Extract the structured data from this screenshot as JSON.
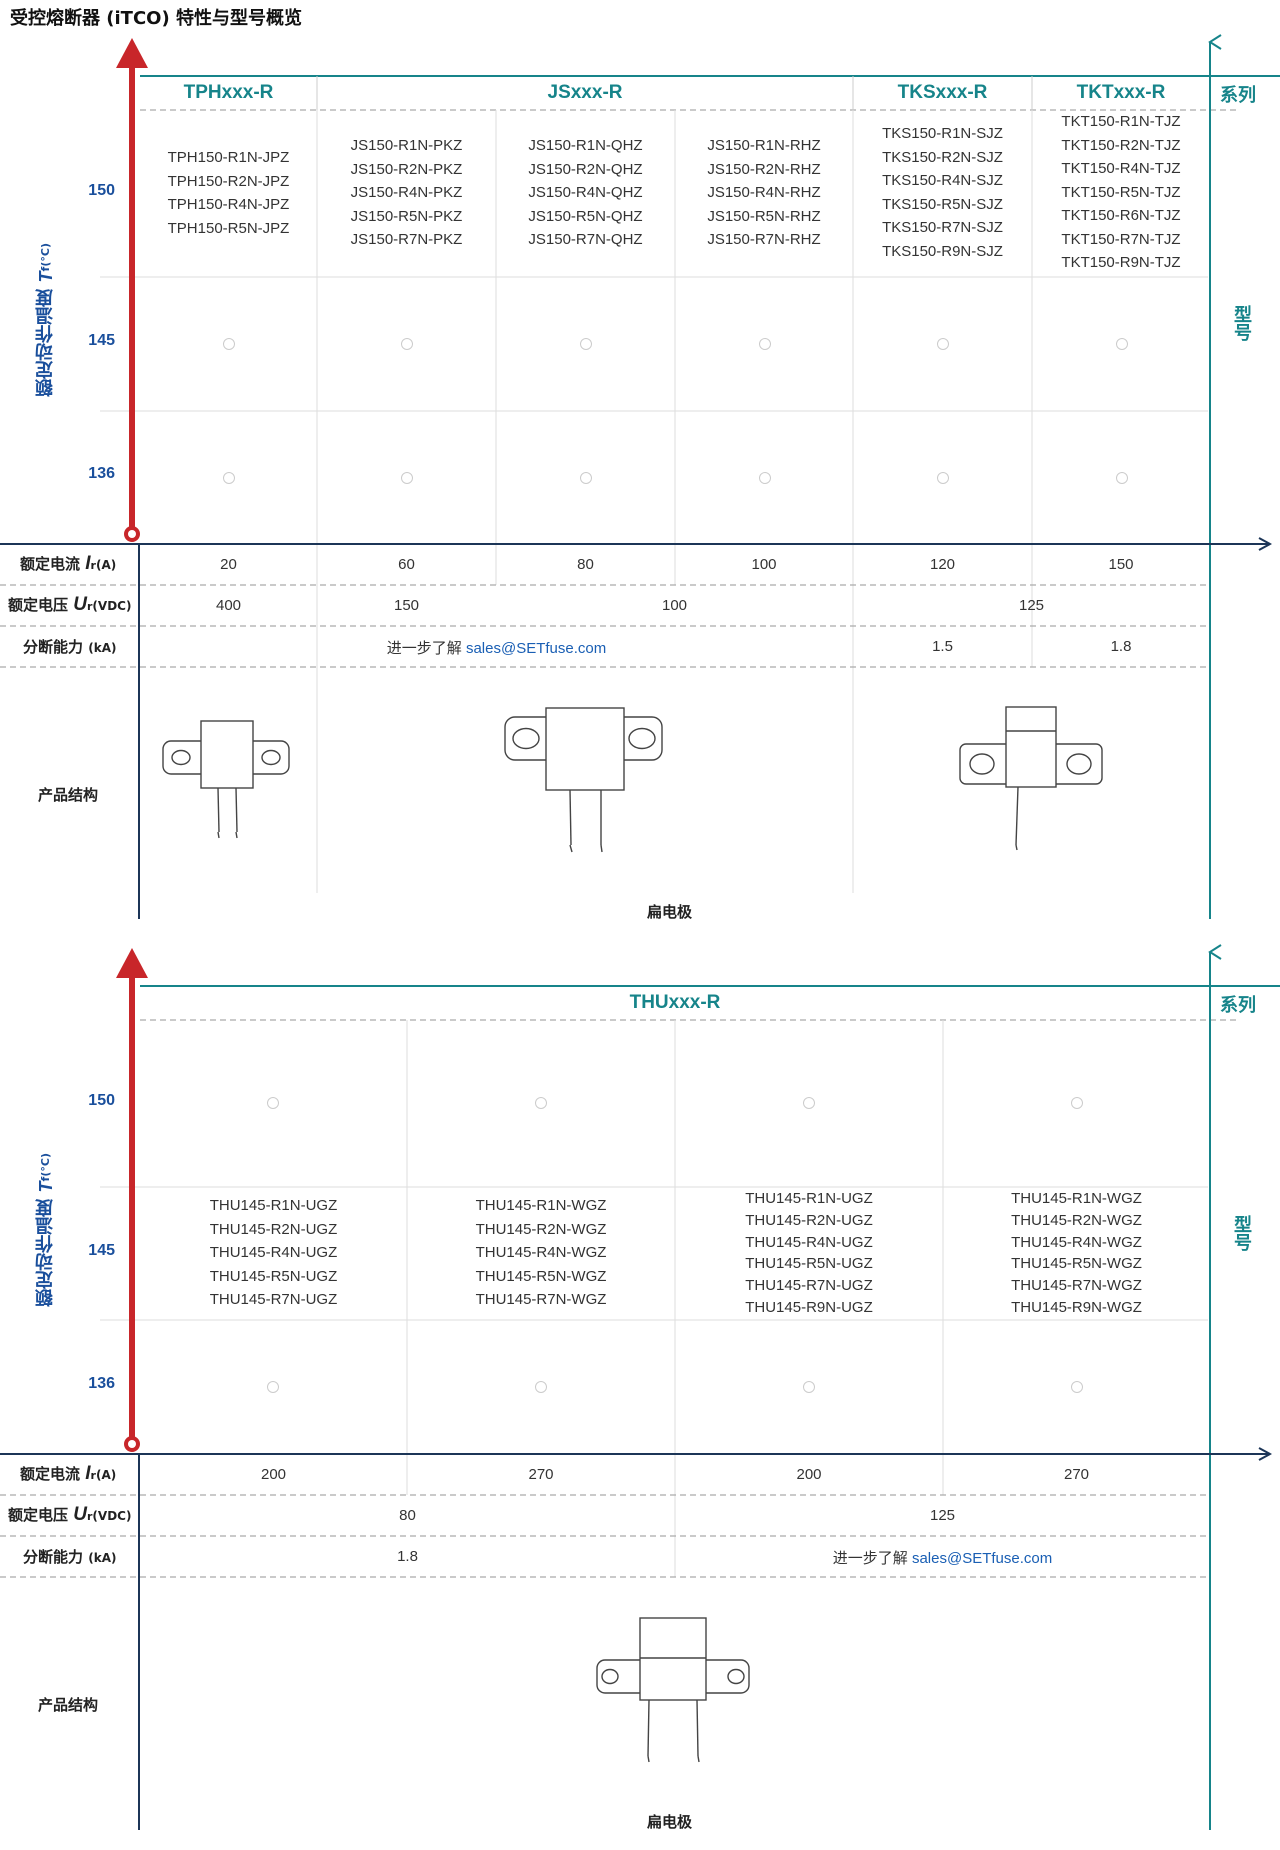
{
  "title": "受控熔断器 (iTCO) 特性与型号概览",
  "labels": {
    "series": "系列",
    "model": "型号",
    "yaxis_main": "额定动作温度",
    "yaxis_symbol": "T",
    "yaxis_sub": "f",
    "yaxis_unit": "(°C)",
    "current_main": "额定电流",
    "current_symbol": "I",
    "current_sub": "r",
    "current_unit": "(A)",
    "voltage_main": "额定电压",
    "voltage_symbol": "U",
    "voltage_sub": "r",
    "voltage_unit": "(VDC)",
    "breaking_main": "分断能力",
    "breaking_unit": "(kA)",
    "structure": "产品结构",
    "electrode": "扁电极",
    "contact_prefix": "进一步了解",
    "contact_email": "sales@SETfuse.com"
  },
  "temps": [
    "150",
    "145",
    "136"
  ],
  "table1": {
    "series": [
      "TPHxxx-R",
      "JSxxx-R",
      "TKSxxx-R",
      "TKTxxx-R"
    ],
    "models": [
      [
        "TPH150-R1N-JPZ",
        "TPH150-R2N-JPZ",
        "TPH150-R4N-JPZ",
        "TPH150-R5N-JPZ"
      ],
      [
        "JS150-R1N-PKZ",
        "JS150-R2N-PKZ",
        "JS150-R4N-PKZ",
        "JS150-R5N-PKZ",
        "JS150-R7N-PKZ"
      ],
      [
        "JS150-R1N-QHZ",
        "JS150-R2N-QHZ",
        "JS150-R4N-QHZ",
        "JS150-R5N-QHZ",
        "JS150-R7N-QHZ"
      ],
      [
        "JS150-R1N-RHZ",
        "JS150-R2N-RHZ",
        "JS150-R4N-RHZ",
        "JS150-R5N-RHZ",
        "JS150-R7N-RHZ"
      ],
      [
        "TKS150-R1N-SJZ",
        "TKS150-R2N-SJZ",
        "TKS150-R4N-SJZ",
        "TKS150-R5N-SJZ",
        "TKS150-R7N-SJZ",
        "TKS150-R9N-SJZ"
      ],
      [
        "TKT150-R1N-TJZ",
        "TKT150-R2N-TJZ",
        "TKT150-R4N-TJZ",
        "TKT150-R5N-TJZ",
        "TKT150-R6N-TJZ",
        "TKT150-R7N-TJZ",
        "TKT150-R9N-TJZ"
      ]
    ],
    "currents": [
      "20",
      "60",
      "80",
      "100",
      "120",
      "150"
    ],
    "voltages": [
      "400",
      "150",
      "100",
      "125"
    ],
    "breaking": [
      "1.5",
      "1.8"
    ]
  },
  "table2": {
    "series": "THUxxx-R",
    "models": [
      [
        "THU145-R1N-UGZ",
        "THU145-R2N-UGZ",
        "THU145-R4N-UGZ",
        "THU145-R5N-UGZ",
        "THU145-R7N-UGZ"
      ],
      [
        "THU145-R1N-WGZ",
        "THU145-R2N-WGZ",
        "THU145-R4N-WGZ",
        "THU145-R5N-WGZ",
        "THU145-R7N-WGZ"
      ],
      [
        "THU145-R1N-UGZ",
        "THU145-R2N-UGZ",
        "THU145-R4N-UGZ",
        "THU145-R5N-UGZ",
        "THU145-R7N-UGZ",
        "THU145-R9N-UGZ"
      ],
      [
        "THU145-R1N-WGZ",
        "THU145-R2N-WGZ",
        "THU145-R4N-WGZ",
        "THU145-R5N-WGZ",
        "THU145-R7N-WGZ",
        "THU145-R9N-WGZ"
      ]
    ],
    "currents": [
      "200",
      "270",
      "200",
      "270"
    ],
    "voltages": [
      "80",
      "125"
    ],
    "breaking": [
      "1.8"
    ]
  },
  "colors": {
    "teal": "#16848a",
    "red": "#c8262a",
    "navy": "#1c3557",
    "blue": "#1a4f9c"
  }
}
